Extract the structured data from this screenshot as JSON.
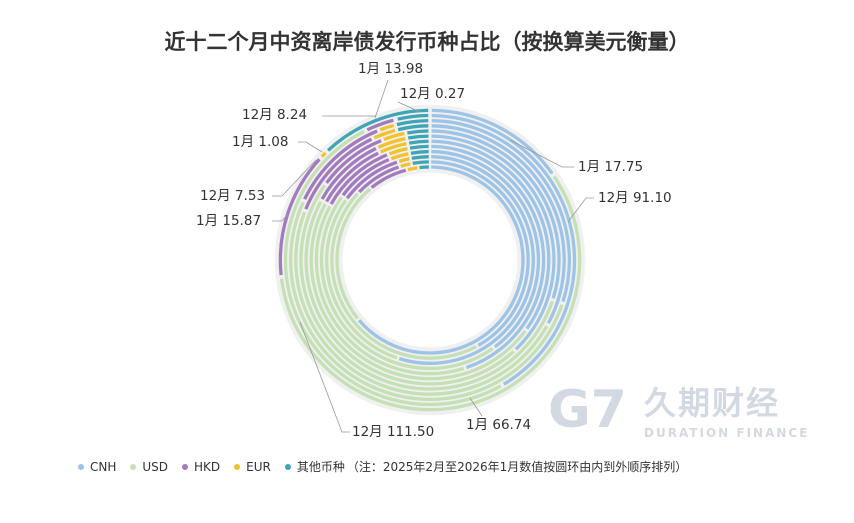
{
  "chart_data": {
    "type": "pie",
    "subtype": "nested-donut",
    "title": "近十二个月中资离岸债发行币种占比（按换算美元衡量）",
    "series_names": [
      "CNH",
      "USD",
      "HKD",
      "EUR",
      "其他币种"
    ],
    "colors": [
      "#9dc3e6",
      "#c5e0b4",
      "#a27bbf",
      "#f2c12e",
      "#3fa4b5"
    ],
    "rings_inner_to_outer": [
      {
        "month": "2025-02",
        "values": [
          64,
          25,
          7,
          2,
          2
        ]
      },
      {
        "month": "2025-03",
        "values": [
          42,
          45,
          8,
          2,
          3
        ]
      },
      {
        "month": "2025-04",
        "values": [
          55,
          30,
          10,
          2,
          3
        ]
      },
      {
        "month": "2025-05",
        "values": [
          40,
          45,
          9,
          3,
          3
        ]
      },
      {
        "month": "2025-06",
        "values": [
          45,
          38,
          11,
          3,
          3
        ]
      },
      {
        "month": "2025-07",
        "values": [
          35,
          48,
          10,
          4,
          3
        ]
      },
      {
        "month": "2025-08",
        "values": [
          38,
          45,
          10,
          4,
          3
        ]
      },
      {
        "month": "2025-09",
        "values": [
          30,
          55,
          9,
          3,
          3
        ]
      },
      {
        "month": "2025-10",
        "values": [
          33,
          48,
          12,
          3,
          4
        ]
      },
      {
        "month": "2025-11",
        "values": [
          30,
          52,
          12,
          2,
          4
        ]
      },
      {
        "month": "2025-12",
        "values": [
          91.1,
          111.5,
          7.53,
          0.27,
          8.24
        ]
      },
      {
        "month": "2026-01",
        "values": [
          17.75,
          66.74,
          15.87,
          1.08,
          13.98
        ]
      }
    ],
    "data_labels": [
      {
        "text": "1月 13.98"
      },
      {
        "text": "12月 0.27"
      },
      {
        "text": "12月 8.24"
      },
      {
        "text": "1月 1.08"
      },
      {
        "text": "12月 7.53"
      },
      {
        "text": "1月 15.87"
      },
      {
        "text": "1月 17.75"
      },
      {
        "text": "12月 91.10"
      },
      {
        "text": "12月 111.50"
      },
      {
        "text": "1月 66.74"
      }
    ],
    "legend": {
      "position": "bottom-left",
      "items": [
        "CNH",
        "USD",
        "HKD",
        "EUR",
        "其他币种"
      ]
    },
    "note": "（注：2025年2月至2026年1月数值按圆环由内到外顺序排列）"
  },
  "watermark": {
    "cn": "久期财经",
    "en": "DURATION FINANCE",
    "mark": "G"
  }
}
